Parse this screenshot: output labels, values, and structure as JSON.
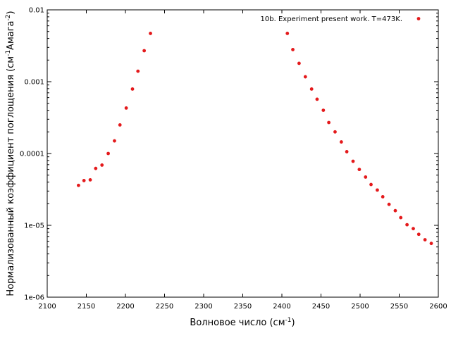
{
  "chart_data": {
    "type": "scatter",
    "xlabel": "Волновое число (см",
    "xlabel_sup": "-1",
    "xlabel_end": ")",
    "ylabel_prefix": "Нормализованный коэффициент поглощения (см",
    "ylabel_sup1": "-1",
    "ylabel_mid": "Амага",
    "ylabel_sup2": "-2",
    "ylabel_end": ")",
    "x_axis": {
      "min": 2100,
      "max": 2600,
      "scale": "linear",
      "ticks": [
        2100,
        2150,
        2200,
        2250,
        2300,
        2350,
        2400,
        2450,
        2500,
        2550,
        2600
      ]
    },
    "y_axis": {
      "min": 1e-06,
      "max": 0.01,
      "scale": "log",
      "ticks": [
        {
          "value": 1e-06,
          "label": "1e-06"
        },
        {
          "value": 1e-05,
          "label": "1e-05"
        },
        {
          "value": 0.0001,
          "label": "0.0001"
        },
        {
          "value": 0.001,
          "label": "0.001"
        },
        {
          "value": 0.01,
          "label": "0.01"
        }
      ]
    },
    "grid": false,
    "legend_position": "top-right",
    "series": [
      {
        "name": "10b. Experiment  present work. T=473K.",
        "color": "#e41a1c",
        "marker": "dot",
        "points": [
          [
            2140,
            3.6e-05
          ],
          [
            2147,
            4.2e-05
          ],
          [
            2155,
            4.3e-05
          ],
          [
            2162,
            6.2e-05
          ],
          [
            2170,
            6.9e-05
          ],
          [
            2178,
            0.0001
          ],
          [
            2186,
            0.00015
          ],
          [
            2193,
            0.00025
          ],
          [
            2201,
            0.00043
          ],
          [
            2209,
            0.00079
          ],
          [
            2216,
            0.0014
          ],
          [
            2224,
            0.0027
          ],
          [
            2232,
            0.0047
          ],
          [
            2407,
            0.0047
          ],
          [
            2414,
            0.0028
          ],
          [
            2422,
            0.0018
          ],
          [
            2430,
            0.00117
          ],
          [
            2438,
            0.00079
          ],
          [
            2445,
            0.00057
          ],
          [
            2453,
            0.0004
          ],
          [
            2460,
            0.00027
          ],
          [
            2468,
            0.0002
          ],
          [
            2476,
            0.000145
          ],
          [
            2483,
            0.000106
          ],
          [
            2491,
            7.8e-05
          ],
          [
            2499,
            6e-05
          ],
          [
            2507,
            4.7e-05
          ],
          [
            2514,
            3.7e-05
          ],
          [
            2522,
            3.1e-05
          ],
          [
            2529,
            2.5e-05
          ],
          [
            2537,
            1.96e-05
          ],
          [
            2545,
            1.6e-05
          ],
          [
            2552,
            1.28e-05
          ],
          [
            2560,
            1.02e-05
          ],
          [
            2568,
            9e-06
          ],
          [
            2575,
            7.5e-06
          ],
          [
            2583,
            6.3e-06
          ],
          [
            2591,
            5.6e-06
          ]
        ]
      }
    ]
  }
}
